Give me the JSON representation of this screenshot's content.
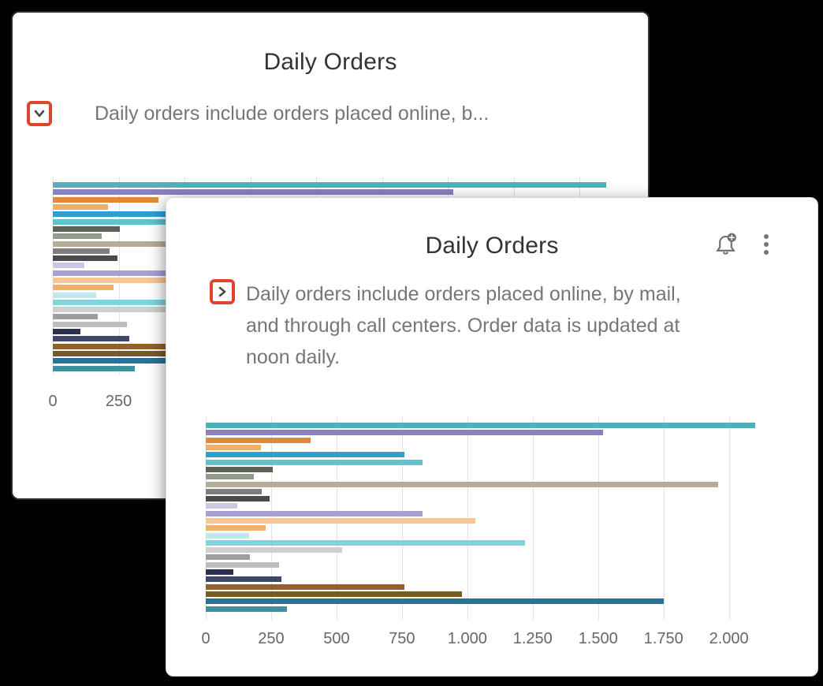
{
  "back_card": {
    "title": "Daily Orders",
    "expander": {
      "icon": "chevron-down",
      "state": "expanded"
    },
    "description": "Daily orders include orders placed online, b..."
  },
  "front_card": {
    "title": "Daily Orders",
    "expander": {
      "icon": "chevron-right",
      "state": "collapsed"
    },
    "description": "Daily orders include orders placed online, by mail, and through call centers. Order data is updated at noon daily.",
    "header_icons": [
      {
        "name": "alert-bell-plus-icon"
      },
      {
        "name": "more-options-icon"
      }
    ]
  },
  "colors": {
    "highlight_red": "#E1432D",
    "title_text": "#333333",
    "body_text": "#767676",
    "axis_text": "#666666",
    "gridline": "#e3e3e3",
    "card_background": "#ffffff",
    "page_background": "#000000"
  },
  "chart_data": {
    "type": "bar",
    "orientation": "horizontal",
    "title": "Daily Orders",
    "xlabel": "",
    "ylabel": "",
    "xlim": [
      0,
      2200
    ],
    "grid": true,
    "legend": false,
    "tick_values": [
      0,
      250,
      500,
      750,
      1000,
      1250,
      1500,
      1750,
      2000
    ],
    "tick_labels": [
      "0",
      "250",
      "500",
      "750",
      "1.000",
      "1.250",
      "1.500",
      "1.750",
      "2.000"
    ],
    "bars": [
      {
        "value": 2100,
        "color": "#4FB2B8"
      },
      {
        "value": 1520,
        "color": "#8B80BE"
      },
      {
        "value": 400,
        "color": "#DF8A3A"
      },
      {
        "value": 210,
        "color": "#EDAE67"
      },
      {
        "value": 760,
        "color": "#2E9FD3"
      },
      {
        "value": 830,
        "color": "#5EC4CE"
      },
      {
        "value": 255,
        "color": "#5A6355"
      },
      {
        "value": 185,
        "color": "#949B8D"
      },
      {
        "value": 1960,
        "color": "#B5AC9A"
      },
      {
        "value": 215,
        "color": "#7E7E7E"
      },
      {
        "value": 245,
        "color": "#4B4B4B"
      },
      {
        "value": 120,
        "color": "#CCC5E3"
      },
      {
        "value": 830,
        "color": "#A89FD2"
      },
      {
        "value": 1030,
        "color": "#F6C795"
      },
      {
        "value": 230,
        "color": "#F0B267"
      },
      {
        "value": 165,
        "color": "#C3E7ED"
      },
      {
        "value": 1220,
        "color": "#80D4DC"
      },
      {
        "value": 520,
        "color": "#CFCFCF"
      },
      {
        "value": 170,
        "color": "#9E9E9E"
      },
      {
        "value": 280,
        "color": "#BDBDBD"
      },
      {
        "value": 105,
        "color": "#2C3051"
      },
      {
        "value": 290,
        "color": "#3F4667"
      },
      {
        "value": 760,
        "color": "#92602B"
      },
      {
        "value": 980,
        "color": "#7A5A22"
      },
      {
        "value": 1750,
        "color": "#2D6F95"
      },
      {
        "value": 310,
        "color": "#3F90A1"
      }
    ]
  }
}
